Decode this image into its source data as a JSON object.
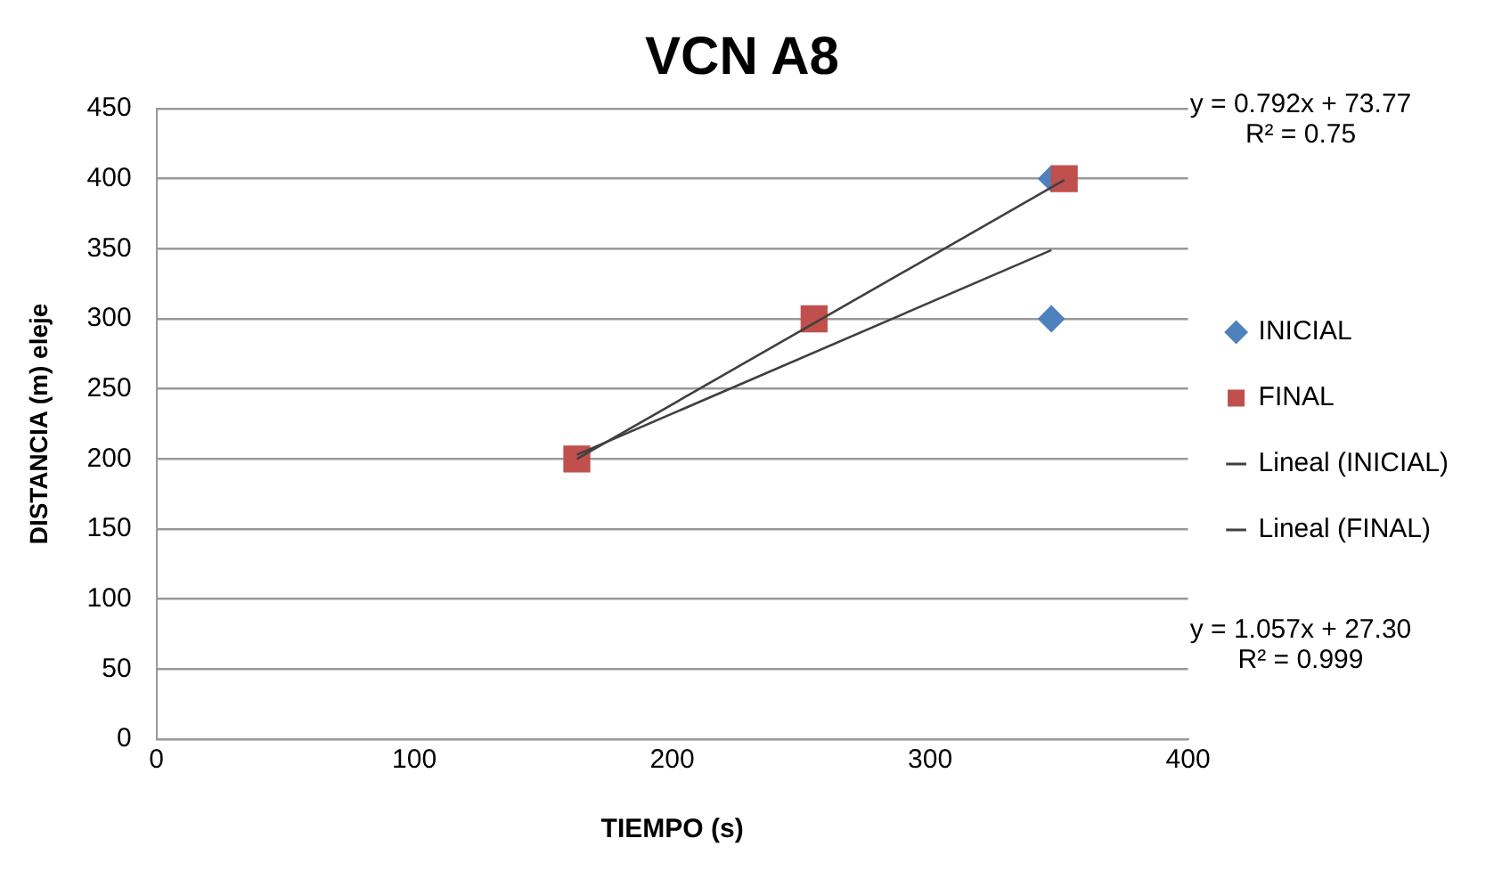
{
  "chart_data": {
    "type": "scatter",
    "title": "VCN A8",
    "xlabel": "TIEMPO (s)",
    "ylabel": "DISTANCIA (m) eleje",
    "xlim": [
      0,
      400
    ],
    "xticks": [
      0,
      100,
      200,
      300,
      400
    ],
    "ylim": [
      0,
      450
    ],
    "yticks": [
      0,
      50,
      100,
      150,
      200,
      250,
      300,
      350,
      400,
      450
    ],
    "grid": "y",
    "legend": "right",
    "series": [
      {
        "name": "INICIAL",
        "type": "scatter",
        "marker": "diamond",
        "color": "#4f81bd",
        "x": [
          347,
          347
        ],
        "values": [
          300,
          400
        ]
      },
      {
        "name": "FINAL",
        "type": "scatter",
        "marker": "square",
        "color": "#c0504d",
        "x": [
          163,
          255,
          352
        ],
        "values": [
          200,
          300,
          400
        ]
      },
      {
        "name": "Lineal (INICIAL)",
        "type": "line",
        "marker": "none",
        "color": "#404040",
        "x": [
          163,
          347
        ],
        "values": [
          203,
          349
        ]
      },
      {
        "name": "Lineal (FINAL)",
        "type": "line",
        "marker": "none",
        "color": "#404040",
        "x": [
          163,
          352
        ],
        "values": [
          200,
          399
        ]
      }
    ],
    "annotations": [
      "y = 0.792x + 73.77\nR² = 0.75",
      "y = 1.057x + 27.30\nR² = 0.999"
    ]
  }
}
